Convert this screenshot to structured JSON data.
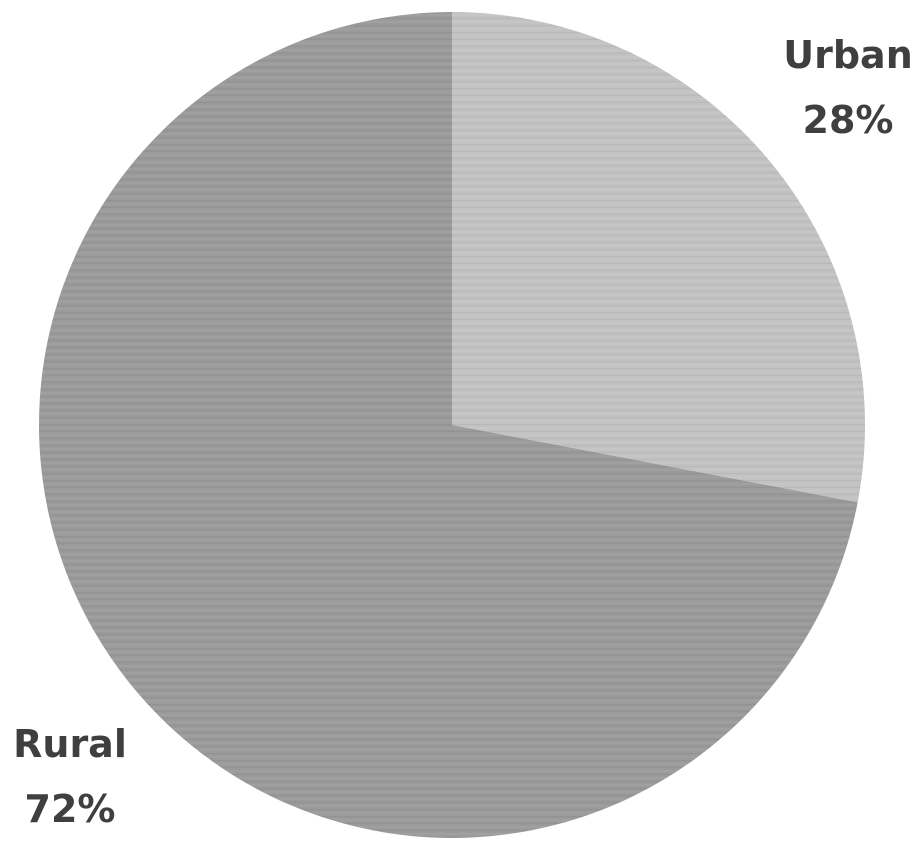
{
  "chart_data": {
    "type": "pie",
    "title": "",
    "start_angle_deg": 0,
    "direction": "clockwise",
    "slices": [
      {
        "label": "Urban",
        "value": 28,
        "value_label": "28%",
        "color": "#c2c2c2"
      },
      {
        "label": "Rural",
        "value": 72,
        "value_label": "72%",
        "color": "#9a9a9a"
      }
    ]
  },
  "colors": {
    "background": "#ffffff",
    "label_text": "#3f3f3f"
  }
}
